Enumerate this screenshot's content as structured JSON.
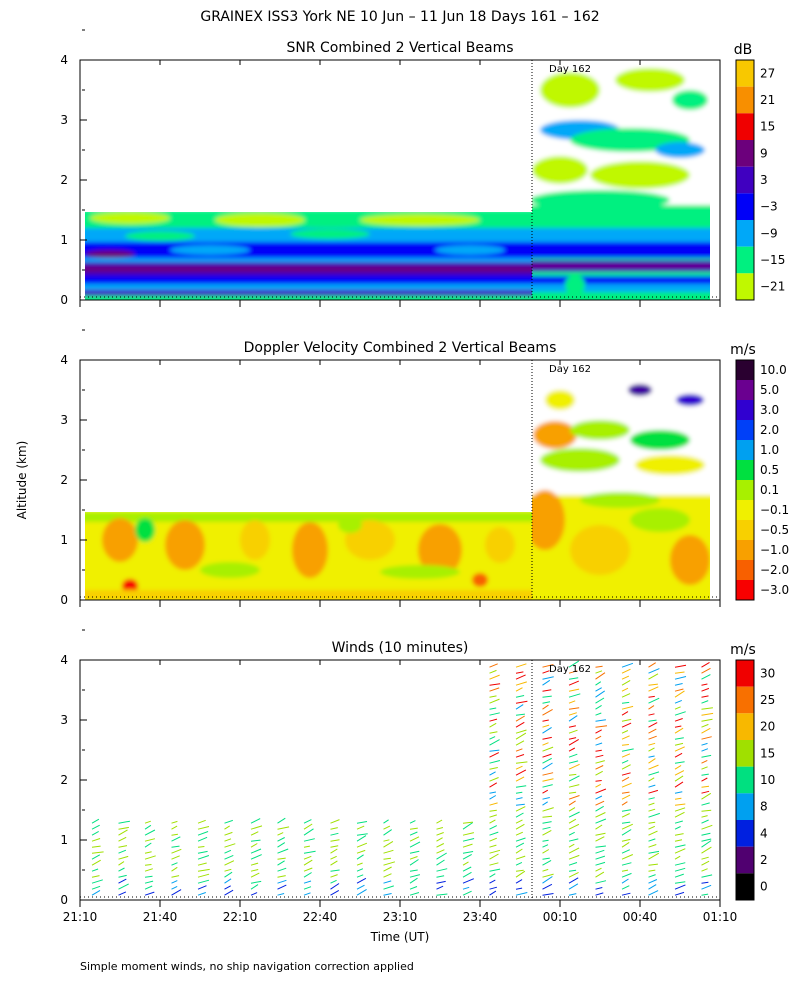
{
  "figure": {
    "title": "GRAINEX ISS3 York NE  10 Jun – 11 Jun 18 Days 161 – 162",
    "ylabel": "Altitude (km)",
    "xlabel": "Time (UT)",
    "footnote": "Simple moment winds, no ship navigation correction applied",
    "day_marker": "Day 162"
  },
  "chart_data": [
    {
      "type": "heatmap",
      "title": "SNR Combined 2 Vertical Beams",
      "ylim": [
        0,
        4
      ],
      "yticks": [
        "0",
        "1",
        "2",
        "3",
        "4"
      ],
      "xticks": [],
      "colorbar": {
        "unit": "dB",
        "labels": [
          "27",
          "21",
          "15",
          "9",
          "3",
          "−3",
          "−9",
          "−15",
          "−21"
        ],
        "colors": [
          "#f8c800",
          "#f88f00",
          "#f00000",
          "#6c007c",
          "#4000c0",
          "#0000f8",
          "#00a8f8",
          "#00f080",
          "#c0f800"
        ]
      },
      "features": {
        "coverage_top_km": [
          1.42,
          1.42,
          1.42,
          1.42,
          1.42,
          1.45,
          4.0,
          4.0
        ],
        "strong_band_km": 0.55
      }
    },
    {
      "type": "heatmap",
      "title": "Doppler Velocity Combined 2 Vertical Beams",
      "ylim": [
        0,
        4
      ],
      "yticks": [
        "0",
        "1",
        "2",
        "3",
        "4"
      ],
      "xticks": [],
      "colorbar": {
        "unit": "m/s",
        "labels": [
          "10.0",
          "5.0",
          "3.0",
          "2.0",
          "1.0",
          "0.5",
          "0.1",
          "−0.1",
          "−0.5",
          "−1.0",
          "−2.0",
          "−3.0"
        ],
        "colors": [
          "#2a0030",
          "#6a0090",
          "#3000d0",
          "#0040f8",
          "#00a0f0",
          "#00e040",
          "#a8f000",
          "#f0f000",
          "#f8d000",
          "#f8a000",
          "#f86000",
          "#f80000"
        ]
      }
    },
    {
      "type": "scatter",
      "title": "Winds (10 minutes)",
      "ylim": [
        0,
        4
      ],
      "yticks": [
        "0",
        "1",
        "2",
        "3",
        "4"
      ],
      "xticks": [
        "21:10",
        "21:40",
        "22:10",
        "22:40",
        "23:10",
        "23:40",
        "00:10",
        "00:40",
        "01:10"
      ],
      "colorbar": {
        "unit": "m/s",
        "labels": [
          "30",
          "25",
          "20",
          "15",
          "10",
          "8",
          "4",
          "2",
          "0"
        ],
        "colors": [
          "#f00000",
          "#f87000",
          "#f8b800",
          "#a0e000",
          "#00e080",
          "#00a0f0",
          "#0020e0",
          "#500070",
          "#000000"
        ]
      },
      "wind_profile_top_km": [
        1.42,
        1.42,
        1.42,
        1.42,
        1.42,
        4.0,
        4.0,
        4.0
      ]
    }
  ]
}
